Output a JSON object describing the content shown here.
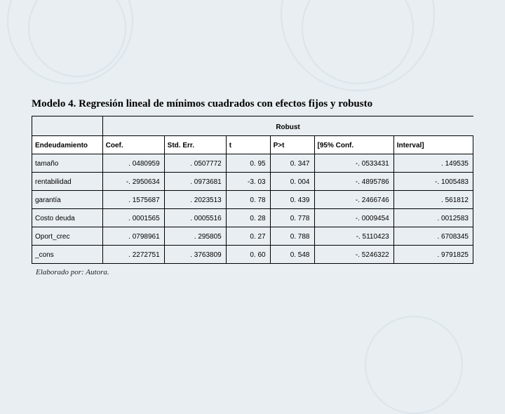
{
  "title": "Modelo 4. Regresión lineal de mínimos cuadrados con efectos fijos y robusto",
  "caption": "Elaborado por: Autora.",
  "table": {
    "robust_label": "Robust",
    "headers": [
      "Endeudamiento",
      "Coef.",
      "Std. Err.",
      "t",
      "P>t",
      "[95% Conf.",
      "Interval]"
    ],
    "columns_align": [
      "left",
      "right",
      "right",
      "right",
      "right",
      "right",
      "right"
    ],
    "col_widths_pct": [
      16,
      14,
      14,
      10,
      10,
      18,
      18
    ],
    "rows": [
      {
        "var": "tamaño",
        "coef": ". 0480959",
        "se": ". 0507772",
        "t": "0. 95",
        "pt": "0. 347",
        "ci_lo": "-. 0533431",
        "ci_hi": ". 149535"
      },
      {
        "var": "rentabilidad",
        "coef": "-. 2950634",
        "se": ". 0973681",
        "t": "-3. 03",
        "pt": "0. 004",
        "ci_lo": "-. 4895786",
        "ci_hi": "-. 1005483"
      },
      {
        "var": "garantía",
        "coef": ". 1575687",
        "se": ". 2023513",
        "t": "0. 78",
        "pt": "0. 439",
        "ci_lo": "-. 2466746",
        "ci_hi": ". 561812"
      },
      {
        "var": "Costo deuda",
        "coef": ". 0001565",
        "se": ". 0005516",
        "t": "0. 28",
        "pt": "0. 778",
        "ci_lo": "-. 0009454",
        "ci_hi": ". 0012583"
      },
      {
        "var": "Oport_crec",
        "coef": ". 0798961",
        "se": ". 295805",
        "t": "0. 27",
        "pt": "0. 788",
        "ci_lo": "-. 5110423",
        "ci_hi": ". 6708345"
      },
      {
        "var": "_cons",
        "coef": ". 2272751",
        "se": ". 3763809",
        "t": "0. 60",
        "pt": "0. 548",
        "ci_lo": "-. 5246322",
        "ci_hi": ". 9791825"
      }
    ],
    "style": {
      "font_size_pt": 10,
      "header_bg": "#ffffff",
      "body_bg": "#ffffff",
      "border_color": "#000000",
      "text_color": "#000000"
    }
  },
  "page": {
    "bg_color": "#e8eef2",
    "swirl_color": "rgba(200,215,225,0.4)",
    "title_font": "Times New Roman",
    "title_size_pt": 15,
    "caption_size_pt": 11
  }
}
